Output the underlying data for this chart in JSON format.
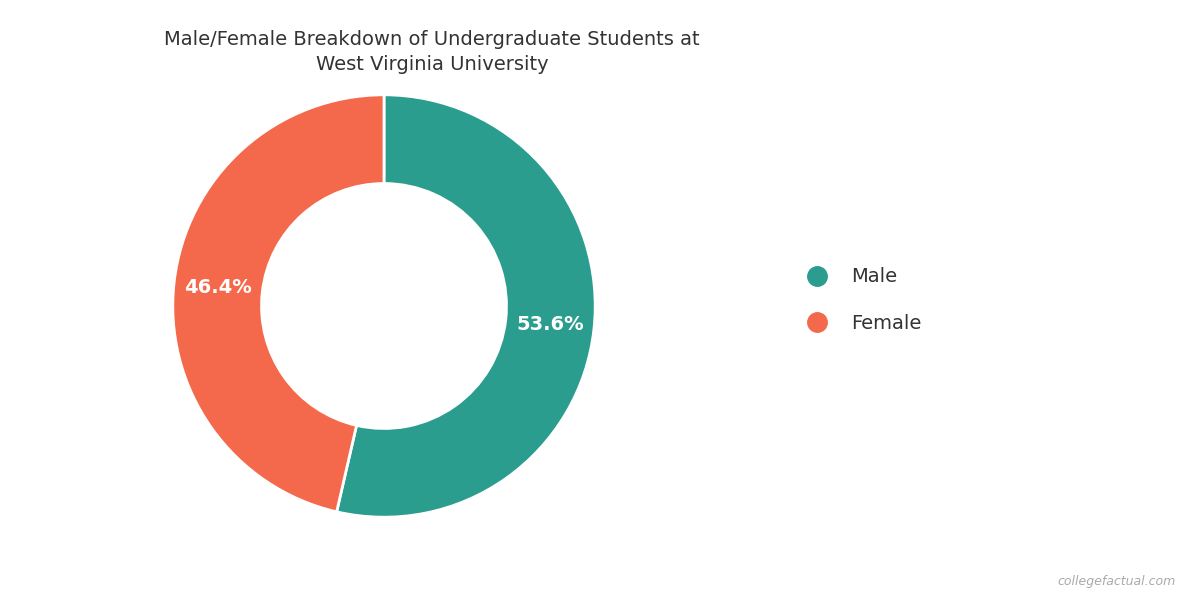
{
  "title": "Male/Female Breakdown of Undergraduate Students at\nWest Virginia University",
  "labels": [
    "Male",
    "Female"
  ],
  "values": [
    53.6,
    46.4
  ],
  "colors": [
    "#2a9d8f",
    "#f4694b"
  ],
  "label_texts": [
    "53.6%",
    "46.4%"
  ],
  "legend_labels": [
    "Male",
    "Female"
  ],
  "watermark": "collegefactual.com",
  "title_fontsize": 14,
  "label_fontsize": 14,
  "legend_fontsize": 14,
  "donut_width": 0.42
}
